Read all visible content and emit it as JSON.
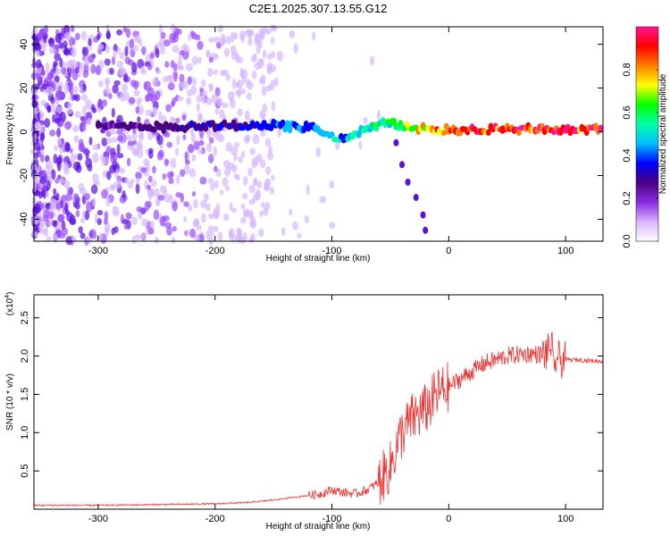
{
  "title": "C2E1.2025.307.13.55.G12",
  "chart_data": [
    {
      "type": "heatmap",
      "name": "spectrogram",
      "xlabel": "Height of straight line (km)",
      "ylabel": "Frequency (Hz)",
      "xlim": [
        -355,
        132
      ],
      "ylim": [
        -50,
        48
      ],
      "xticks": [
        -300,
        -200,
        -100,
        0,
        100
      ],
      "yticks": [
        -40,
        -20,
        0,
        20,
        40
      ],
      "colorbar": {
        "label": "Normalized spectral amplitude",
        "range": [
          0,
          1
        ],
        "ticks": [
          "0.0",
          "0.2",
          "0.4",
          "0.6",
          "0.8"
        ],
        "colors": [
          "#ffffff",
          "#d9b3ff",
          "#8a2be2",
          "#4b0082",
          "#0000ff",
          "#00bfff",
          "#00ffaa",
          "#00ff00",
          "#ffff00",
          "#ff8000",
          "#ff0000",
          "#ff1493"
        ]
      },
      "main_trace": [
        {
          "x": -300,
          "y": 2,
          "a": 0.25
        },
        {
          "x": -170,
          "y": 3,
          "a": 0.35
        },
        {
          "x": -150,
          "y": 3,
          "a": 0.4
        },
        {
          "x": -120,
          "y": 2,
          "a": 0.45
        },
        {
          "x": -100,
          "y": -2,
          "a": 0.5
        },
        {
          "x": -90,
          "y": -4,
          "a": 0.5
        },
        {
          "x": -75,
          "y": 0,
          "a": 0.55
        },
        {
          "x": -60,
          "y": 4,
          "a": 0.55
        },
        {
          "x": -45,
          "y": 3,
          "a": 0.6
        },
        {
          "x": -30,
          "y": 2,
          "a": 0.7
        },
        {
          "x": -10,
          "y": 1,
          "a": 0.85
        },
        {
          "x": 0,
          "y": 1,
          "a": 0.9
        },
        {
          "x": 50,
          "y": 1,
          "a": 0.95
        },
        {
          "x": 132,
          "y": 1,
          "a": 0.95
        }
      ],
      "branch_trace": [
        {
          "x": -45,
          "y": -5
        },
        {
          "x": -40,
          "y": -15
        },
        {
          "x": -35,
          "y": -23
        },
        {
          "x": -28,
          "y": -30
        },
        {
          "x": -22,
          "y": -38
        },
        {
          "x": -20,
          "y": -45
        }
      ]
    },
    {
      "type": "line",
      "name": "snr",
      "xlabel": "Height of straight line (km)",
      "ylabel": "SNR (10 * v/v)",
      "yexponent_label": "(x10",
      "yexponent_power": "4",
      "exponent_paren": ")",
      "xlim": [
        -355,
        132
      ],
      "ylim": [
        0,
        2.8
      ],
      "xticks": [
        -300,
        -200,
        -100,
        0,
        100
      ],
      "yticks": [
        "0.5",
        "1.0",
        "1.5",
        "2.0",
        "2.5"
      ],
      "color": "#ee3333",
      "series": [
        {
          "name": "SNR",
          "x": [
            -355,
            -300,
            -250,
            -200,
            -170,
            -150,
            -130,
            -110,
            -100,
            -90,
            -80,
            -70,
            -60,
            -50,
            -45,
            -40,
            -35,
            -30,
            -25,
            -20,
            -15,
            -10,
            -5,
            0,
            5,
            10,
            20,
            30,
            40,
            50,
            60,
            70,
            80,
            85,
            88,
            90,
            92,
            95,
            100,
            110,
            120,
            132
          ],
          "y": [
            0.05,
            0.05,
            0.06,
            0.07,
            0.09,
            0.12,
            0.16,
            0.2,
            0.25,
            0.22,
            0.2,
            0.25,
            0.35,
            0.55,
            0.8,
            1.0,
            1.1,
            1.2,
            1.25,
            1.3,
            1.4,
            1.5,
            1.55,
            1.6,
            1.65,
            1.7,
            1.8,
            1.9,
            1.95,
            2.0,
            2.02,
            2.03,
            2.02,
            2.05,
            2.2,
            1.7,
            2.0,
            1.95,
            1.95,
            1.95,
            1.94,
            1.93
          ]
        }
      ]
    }
  ]
}
